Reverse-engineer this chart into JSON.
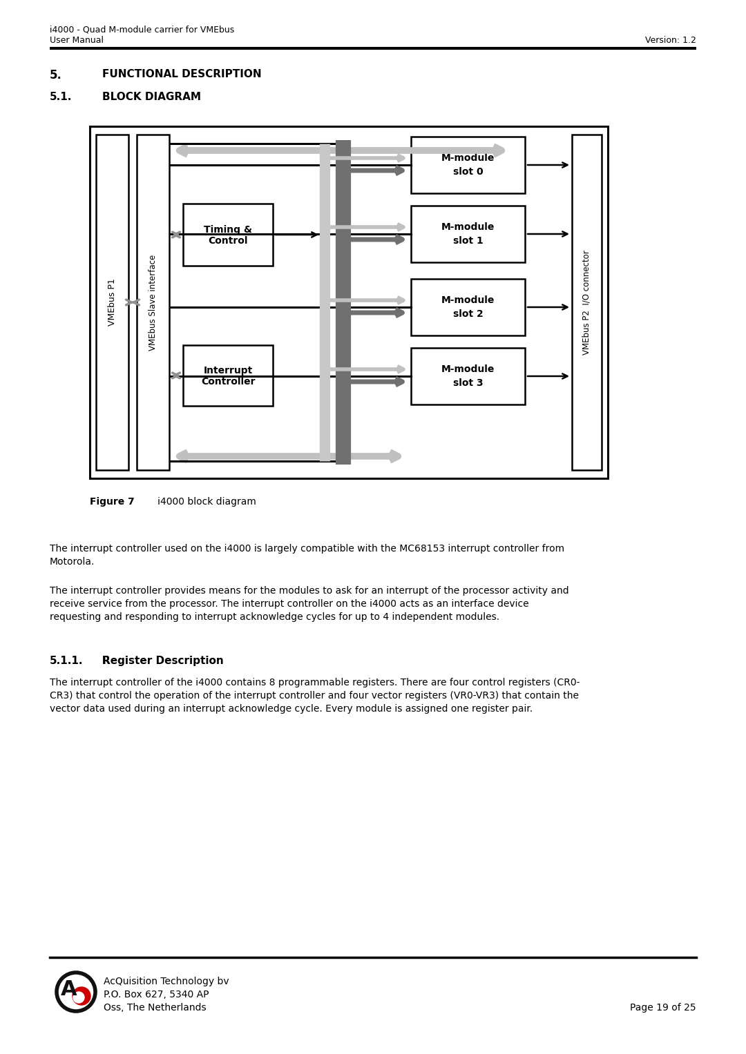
{
  "header_line1": "i4000 - Quad M-module carrier for VMEbus",
  "header_line2": "User Manual",
  "header_version": "Version: 1.2",
  "section_num": "5.",
  "section_text": "Functional Description",
  "sub_num": "5.1.",
  "sub_text": "Block Diagram",
  "figure_bold": "Figure 7",
  "figure_normal": "   i4000 block diagram",
  "para1_line1": "The interrupt controller used on the i4000 is largely compatible with the MC68153 interrupt controller from",
  "para1_line2": "Motorola.",
  "para2_line1": "The interrupt controller provides means for the modules to ask for an interrupt of the processor activity and",
  "para2_line2": "receive service from the processor. The interrupt controller on the i4000 acts as an interface device",
  "para2_line3": "requesting and responding to interrupt acknowledge cycles for up to 4 independent modules.",
  "sub2_num": "5.1.1.",
  "sub2_text": "Register Description",
  "para3_line1": "The interrupt controller of the i4000 contains 8 programmable registers. There are four control registers (CR0-",
  "para3_line2": "CR3) that control the operation of the interrupt controller and four vector registers (VR0-VR3) that contain the",
  "para3_line3": "vector data used during an interrupt acknowledge cycle. Every module is assigned one register pair.",
  "footer_company": "AcQuisition Technology bv",
  "footer_address1": "P.O. Box 627, 5340 AP",
  "footer_address2": "Oss, The Netherlands",
  "footer_page": "Page 19 of 25",
  "bg_color": "#ffffff"
}
